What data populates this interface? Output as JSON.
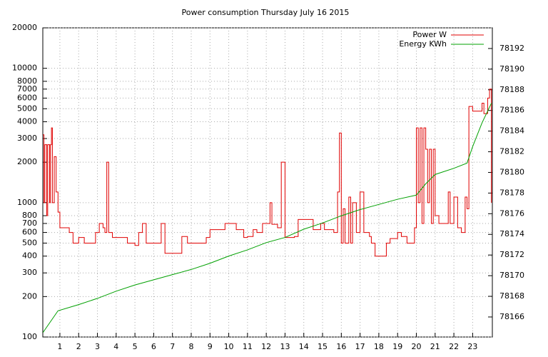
{
  "chart_data": {
    "type": "line",
    "title": "Power consumption Thursday July 16 2015",
    "xlim": [
      0.09,
      24.05
    ],
    "xticks": [
      1,
      2,
      3,
      4,
      5,
      6,
      7,
      8,
      9,
      10,
      11,
      12,
      13,
      14,
      15,
      16,
      17,
      18,
      19,
      20,
      21,
      22,
      23
    ],
    "ylim": [
      100,
      20000
    ],
    "ylog": true,
    "yticks": [
      100,
      200,
      300,
      400,
      500,
      600,
      700,
      800,
      1000,
      2000,
      3000,
      4000,
      5000,
      6000,
      7000,
      8000,
      10000,
      20000
    ],
    "y2lim": [
      78164.06,
      78194.0
    ],
    "y2ticks": [
      78166,
      78168,
      78170,
      78172,
      78174,
      78176,
      78178,
      78180,
      78182,
      78184,
      78186,
      78188,
      78190,
      78192
    ],
    "grid": true,
    "legend": "top-right",
    "step": true,
    "series": [
      {
        "name": "Power W",
        "color": "#e00000",
        "x": [
          0.1,
          0.15,
          0.2,
          0.3,
          0.35,
          0.45,
          0.5,
          0.55,
          0.6,
          0.7,
          0.8,
          0.9,
          1.0,
          1.3,
          1.5,
          1.7,
          2.0,
          2.3,
          2.5,
          2.9,
          3.1,
          3.3,
          3.4,
          3.5,
          3.6,
          3.8,
          4.0,
          4.5,
          4.6,
          5.0,
          5.2,
          5.4,
          5.6,
          6.0,
          6.2,
          6.4,
          6.6,
          7.0,
          7.3,
          7.5,
          7.8,
          8.0,
          8.5,
          8.8,
          9.0,
          9.5,
          9.8,
          10.0,
          10.4,
          10.8,
          11.0,
          11.3,
          11.5,
          11.8,
          12.2,
          12.3,
          12.6,
          12.8,
          13.0,
          13.5,
          13.7,
          14.0,
          14.2,
          14.5,
          14.9,
          15.1,
          15.4,
          15.6,
          15.8,
          15.9,
          16.0,
          16.1,
          16.2,
          16.4,
          16.5,
          16.6,
          16.8,
          17.0,
          17.2,
          17.5,
          17.6,
          17.8,
          18.2,
          18.4,
          18.6,
          19.0,
          19.2,
          19.5,
          19.8,
          19.9,
          20.0,
          20.1,
          20.2,
          20.3,
          20.4,
          20.5,
          20.6,
          20.7,
          20.8,
          20.9,
          21.0,
          21.2,
          21.5,
          21.7,
          21.8,
          22.0,
          22.2,
          22.4,
          22.6,
          22.7,
          22.8,
          23.0,
          23.4,
          23.5,
          23.6,
          23.8,
          23.9,
          24.0
        ],
        "values": [
          3200,
          1000,
          2700,
          800,
          2700,
          1000,
          2700,
          3600,
          1000,
          2200,
          1200,
          850,
          650,
          650,
          600,
          500,
          550,
          500,
          500,
          600,
          700,
          650,
          600,
          2000,
          600,
          550,
          550,
          550,
          500,
          480,
          600,
          700,
          500,
          500,
          500,
          700,
          420,
          420,
          420,
          560,
          500,
          500,
          500,
          550,
          630,
          630,
          700,
          700,
          630,
          550,
          560,
          630,
          600,
          700,
          1000,
          690,
          650,
          2000,
          550,
          560,
          750,
          750,
          750,
          630,
          700,
          630,
          630,
          600,
          1200,
          3300,
          500,
          900,
          500,
          1100,
          500,
          1000,
          600,
          1200,
          600,
          560,
          500,
          400,
          400,
          500,
          540,
          600,
          560,
          500,
          500,
          650,
          3600,
          1000,
          3600,
          700,
          3600,
          2500,
          1000,
          2500,
          700,
          2500,
          800,
          700,
          700,
          1200,
          700,
          1100,
          650,
          600,
          1100,
          900,
          5200,
          4800,
          4800,
          5500,
          4600,
          6000,
          7000,
          1000
        ]
      },
      {
        "name": "Energy KWh",
        "color": "#00a000",
        "axis": "y2",
        "x": [
          0.1,
          0.9,
          2,
          3,
          4,
          5,
          6,
          7,
          8,
          9,
          10,
          11,
          12,
          13,
          14,
          15,
          16,
          17,
          18,
          19,
          20,
          20.5,
          21,
          22,
          22.7,
          23,
          23.5,
          24.0
        ],
        "values": [
          78164.5,
          78166.6,
          78167.2,
          78167.8,
          78168.5,
          78169.1,
          78169.6,
          78170.1,
          78170.6,
          78171.2,
          78171.9,
          78172.5,
          78173.2,
          78173.7,
          78174.5,
          78175.1,
          78175.8,
          78176.4,
          78176.9,
          78177.4,
          78177.8,
          78178.9,
          78179.8,
          78180.4,
          78180.9,
          78182.5,
          78184.8,
          78186.7
        ]
      }
    ]
  }
}
